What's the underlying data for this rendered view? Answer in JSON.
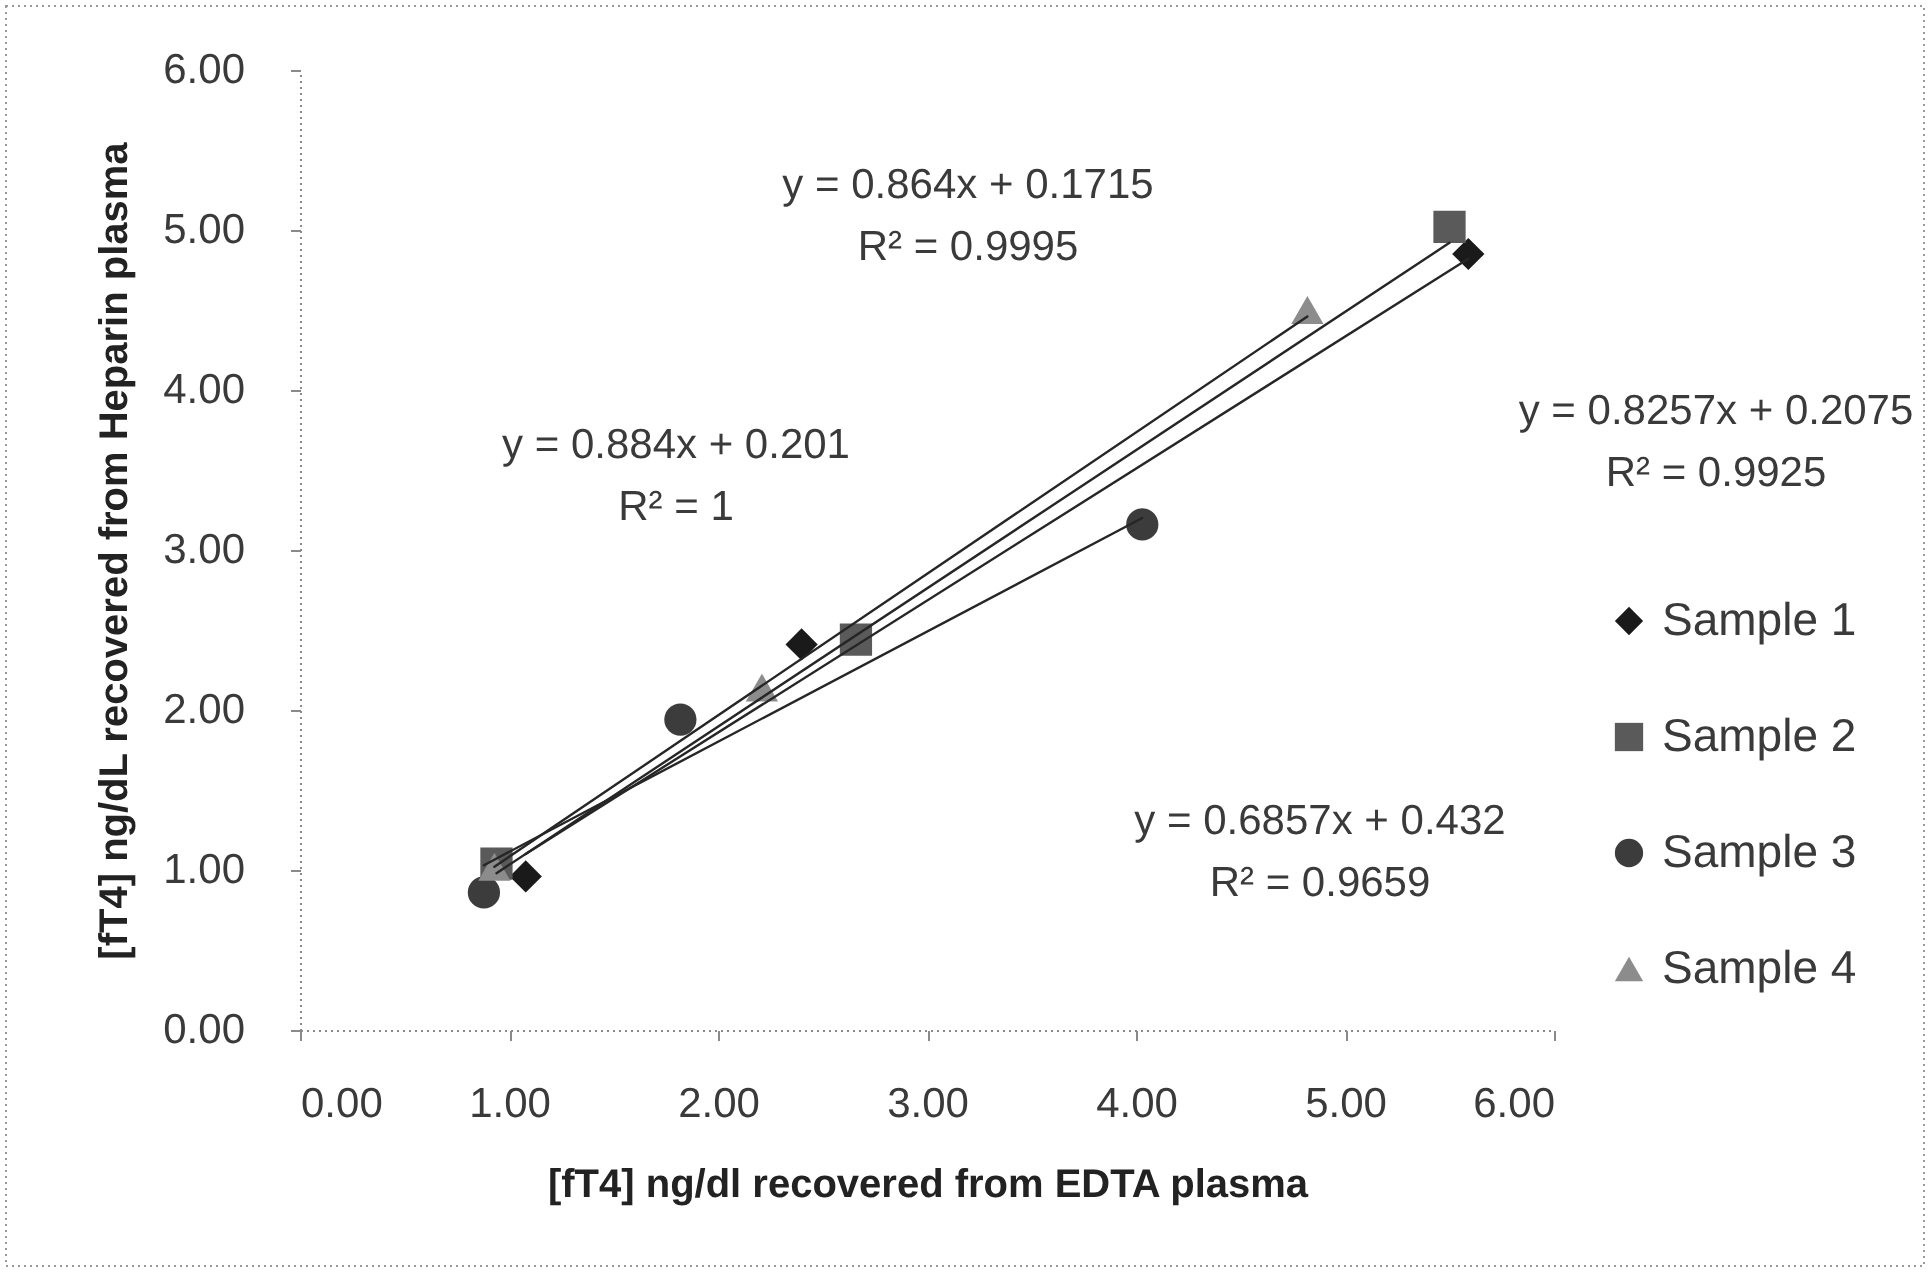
{
  "chart_data": {
    "type": "scatter",
    "xlabel": "[fT4] ng/dl recovered from EDTA plasma",
    "ylabel": "[fT4] ng/dL recovered  from Heparin plasma",
    "xlim": [
      0,
      6
    ],
    "ylim": [
      0,
      6
    ],
    "xticks": [
      {
        "value": 0,
        "label": "0.00"
      },
      {
        "value": 1,
        "label": "1.00"
      },
      {
        "value": 2,
        "label": "2.00"
      },
      {
        "value": 3,
        "label": "3.00"
      },
      {
        "value": 4,
        "label": "4.00"
      },
      {
        "value": 5,
        "label": "5.00"
      },
      {
        "value": 6,
        "label": "6.00"
      }
    ],
    "yticks": [
      {
        "value": 0,
        "label": "0.00"
      },
      {
        "value": 1,
        "label": "1.00"
      },
      {
        "value": 2,
        "label": "2.00"
      },
      {
        "value": 3,
        "label": "3.00"
      },
      {
        "value": 4,
        "label": "4.00"
      },
      {
        "value": 5,
        "label": "5.00"
      },
      {
        "value": 6,
        "label": "6.00"
      }
    ],
    "grid": false,
    "legend": "right",
    "series": [
      {
        "name": "Sample 1",
        "color": "#1a1a1a",
        "marker": "diamond",
        "x": [
          1.08,
          2.4,
          5.59
        ],
        "values": [
          0.96,
          2.41,
          4.85
        ]
      },
      {
        "name": "Sample 2",
        "color": "#5a5a5a",
        "marker": "square",
        "x": [
          0.94,
          2.66,
          5.5
        ],
        "values": [
          1.04,
          2.44,
          5.02
        ]
      },
      {
        "name": "Sample 3",
        "color": "#3c3c3c",
        "marker": "circle",
        "x": [
          0.88,
          1.82,
          4.03
        ],
        "values": [
          0.86,
          1.94,
          3.16
        ]
      },
      {
        "name": "Sample 4",
        "color": "#8c8c8c",
        "marker": "triangle",
        "x": [
          0.93,
          2.21,
          4.82
        ],
        "values": [
          1.02,
          2.14,
          4.5
        ]
      },
      {
        "type": "line",
        "color": "#262626",
        "marker": "none",
        "line_style": "solid",
        "x": [
          1.08,
          5.59
        ],
        "values": [
          1.1,
          4.82
        ]
      },
      {
        "type": "line",
        "color": "#262626",
        "marker": "none",
        "line_style": "solid",
        "x": [
          0.94,
          5.5
        ],
        "values": [
          0.98,
          4.92
        ]
      },
      {
        "type": "line",
        "color": "#262626",
        "marker": "none",
        "line_style": "solid",
        "x": [
          0.88,
          4.03
        ],
        "values": [
          1.03,
          3.2
        ]
      },
      {
        "type": "line",
        "color": "#262626",
        "marker": "none",
        "line_style": "solid",
        "x": [
          0.93,
          4.82
        ],
        "values": [
          1.02,
          4.46
        ]
      }
    ],
    "annotations": [
      "y = 0.864x + 0.1715\nR² = 0.9995",
      "y = 0.884x + 0.201\nR² = 1",
      "y = 0.8257x + 0.2075\nR² = 0.9925",
      "y = 0.6857x + 0.432\nR² = 0.9659"
    ]
  }
}
